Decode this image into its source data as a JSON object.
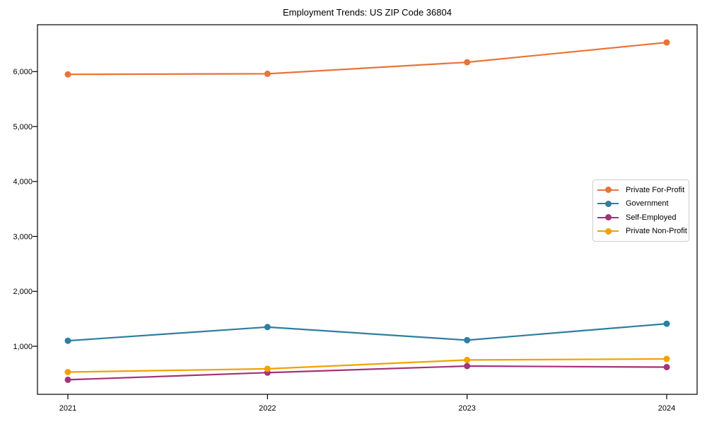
{
  "chart_data": {
    "type": "line",
    "title": "Employment Trends: US ZIP Code 36804",
    "xlabel": "",
    "ylabel": "",
    "x": [
      2021,
      2022,
      2023,
      2024
    ],
    "x_tick_labels": [
      "2021",
      "2022",
      "2023",
      "2024"
    ],
    "y_ticks": [
      1000,
      2000,
      3000,
      4000,
      5000,
      6000
    ],
    "y_tick_labels": [
      "1,000",
      "2,000",
      "3,000",
      "4,000",
      "5,000",
      "6,000"
    ],
    "ylim": [
      125,
      6855
    ],
    "grid": false,
    "legend_position": "center right",
    "marker": "circle",
    "axis_color": "#000000",
    "tick_label_color": "#000000",
    "legend_border_color": "#cccccc",
    "series": [
      {
        "name": "Private For-Profit",
        "color": "#e8743b",
        "values": [
          5950,
          5960,
          6170,
          6530
        ]
      },
      {
        "name": "Government",
        "color": "#2d7f9e",
        "values": [
          1100,
          1350,
          1110,
          1410
        ]
      },
      {
        "name": "Self-Employed",
        "color": "#a23477",
        "values": [
          390,
          520,
          640,
          620
        ]
      },
      {
        "name": "Private Non-Profit",
        "color": "#f0a202",
        "values": [
          530,
          590,
          750,
          770
        ]
      }
    ]
  }
}
